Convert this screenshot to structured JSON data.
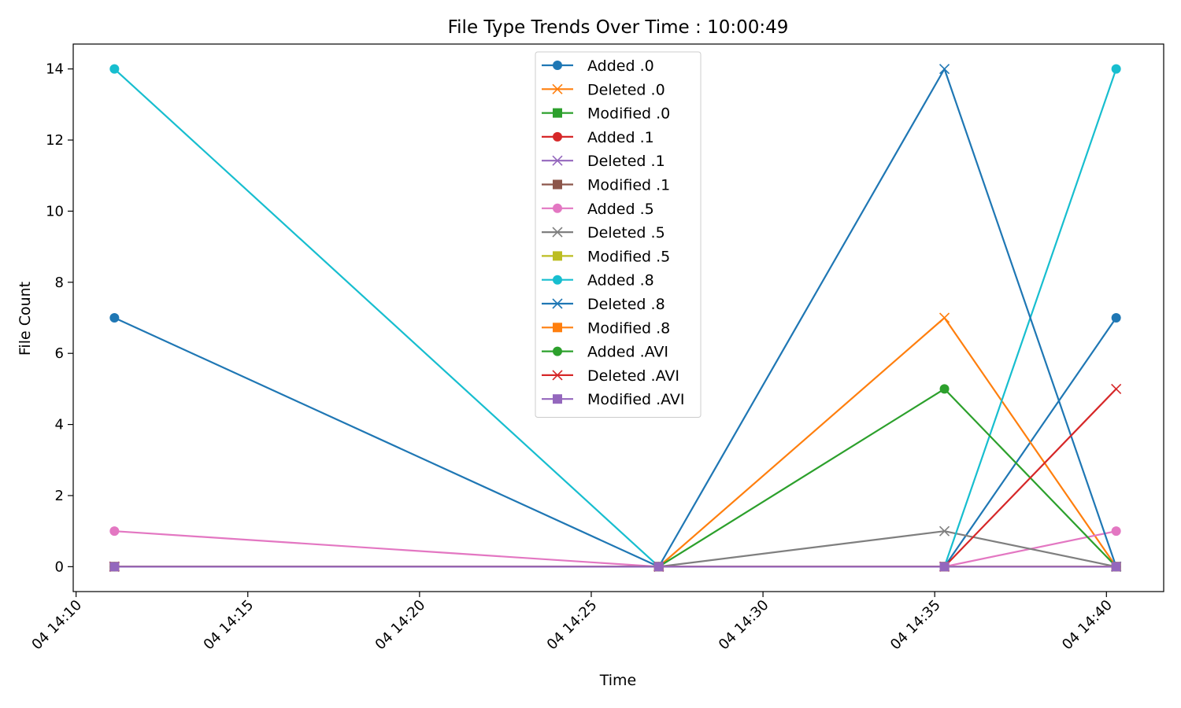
{
  "chart_data": {
    "type": "line",
    "title": "File Type Trends Over Time : 10:00:49",
    "xlabel": "Time",
    "ylabel": "File Count",
    "x": [
      "14:11:07",
      "14:26:58",
      "14:35:17",
      "14:40:17"
    ],
    "xticks": [
      "04 14:10",
      "04 14:15",
      "04 14:20",
      "04 14:25",
      "04 14:30",
      "04 14:35",
      "04 14:40"
    ],
    "xlim": [
      "14:09:55",
      "14:41:40"
    ],
    "ylim": [
      -0.7,
      14.7
    ],
    "yticks": [
      0,
      2,
      4,
      6,
      8,
      10,
      12,
      14
    ],
    "grid": false,
    "legend_position": "top-center",
    "series": [
      {
        "name": "Added .0",
        "color": "#1f77b4",
        "marker": "circle",
        "values": [
          7,
          0,
          0,
          7
        ]
      },
      {
        "name": "Deleted .0",
        "color": "#ff7f0e",
        "marker": "x",
        "values": [
          0,
          0,
          7,
          0
        ]
      },
      {
        "name": "Modified .0",
        "color": "#2ca02c",
        "marker": "square",
        "values": [
          0,
          0,
          0,
          0
        ]
      },
      {
        "name": "Added .1",
        "color": "#d62728",
        "marker": "circle",
        "values": [
          0,
          0,
          0,
          0
        ]
      },
      {
        "name": "Deleted .1",
        "color": "#9467bd",
        "marker": "x",
        "values": [
          0,
          0,
          0,
          0
        ]
      },
      {
        "name": "Modified .1",
        "color": "#8c564b",
        "marker": "square",
        "values": [
          0,
          0,
          0,
          0
        ]
      },
      {
        "name": "Added .5",
        "color": "#e377c2",
        "marker": "circle",
        "values": [
          1,
          0,
          0,
          1
        ]
      },
      {
        "name": "Deleted .5",
        "color": "#7f7f7f",
        "marker": "x",
        "values": [
          0,
          0,
          1,
          0
        ]
      },
      {
        "name": "Modified .5",
        "color": "#bcbd22",
        "marker": "square",
        "values": [
          0,
          0,
          0,
          0
        ]
      },
      {
        "name": "Added .8",
        "color": "#17becf",
        "marker": "circle",
        "values": [
          14,
          0,
          0,
          14
        ]
      },
      {
        "name": "Deleted .8",
        "color": "#1f77b4",
        "marker": "x",
        "values": [
          0,
          0,
          14,
          0
        ]
      },
      {
        "name": "Modified .8",
        "color": "#ff7f0e",
        "marker": "square",
        "values": [
          0,
          0,
          0,
          0
        ]
      },
      {
        "name": "Added .AVI",
        "color": "#2ca02c",
        "marker": "circle",
        "values": [
          0,
          0,
          5,
          0
        ]
      },
      {
        "name": "Deleted .AVI",
        "color": "#d62728",
        "marker": "x",
        "values": [
          0,
          0,
          0,
          5
        ]
      },
      {
        "name": "Modified .AVI",
        "color": "#9467bd",
        "marker": "square",
        "values": [
          0,
          0,
          0,
          0
        ]
      }
    ]
  }
}
